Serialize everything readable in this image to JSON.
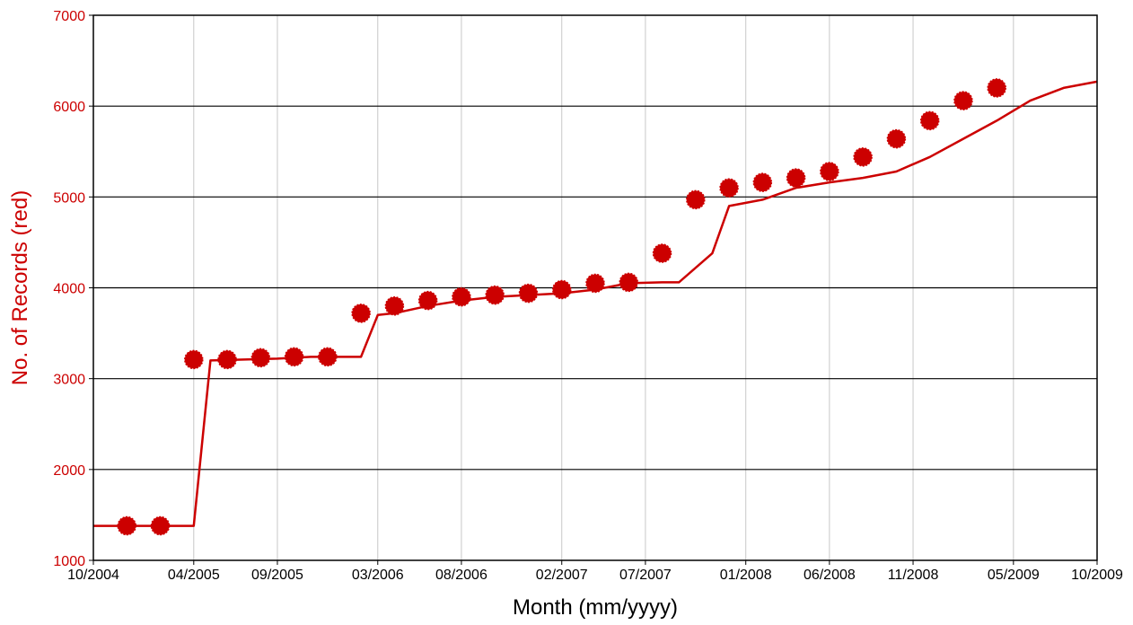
{
  "chart_data": {
    "type": "line",
    "title": "",
    "xlabel": "Month (mm/yyyy)",
    "ylabel": "No. of Records (red)",
    "xlim": [
      "2004-10",
      "2009-10"
    ],
    "ylim": [
      1000,
      7000
    ],
    "x_ticks": [
      "10/2004",
      "04/2005",
      "09/2005",
      "03/2006",
      "08/2006",
      "02/2007",
      "07/2007",
      "01/2008",
      "06/2008",
      "11/2008",
      "05/2009",
      "10/2009"
    ],
    "y_ticks": [
      1000,
      2000,
      3000,
      4000,
      5000,
      6000,
      7000
    ],
    "grid": {
      "vertical": true,
      "horizontal": true
    },
    "legend": "none",
    "series": [
      {
        "color": "#cc0000",
        "x": [
          "2004-10",
          "2005-01",
          "2005-03",
          "2005-04",
          "2005-05",
          "2005-07",
          "2005-09",
          "2005-11",
          "2006-02",
          "2006-03",
          "2006-04",
          "2006-06",
          "2006-08",
          "2006-10",
          "2006-12",
          "2007-02",
          "2007-04",
          "2007-06",
          "2007-08",
          "2007-09",
          "2007-11",
          "2007-12",
          "2008-02",
          "2008-04",
          "2008-06",
          "2008-08",
          "2008-10",
          "2008-12",
          "2009-02",
          "2009-04",
          "2009-06",
          "2009-08",
          "2009-10"
        ],
        "y": [
          1380,
          1380,
          1380,
          1380,
          3200,
          3210,
          3220,
          3240,
          3240,
          3700,
          3720,
          3800,
          3860,
          3900,
          3920,
          3940,
          3980,
          4050,
          4060,
          4060,
          4380,
          4900,
          4970,
          5100,
          5160,
          5210,
          5280,
          5440,
          5640,
          5840,
          6060,
          6200,
          6270
        ],
        "markers": [
          [
            "2004-12",
            1380
          ],
          [
            "2005-02",
            1380
          ],
          [
            "2005-04",
            3210
          ],
          [
            "2005-06",
            3210
          ],
          [
            "2005-08",
            3230
          ],
          [
            "2005-10",
            3240
          ],
          [
            "2005-12",
            3240
          ],
          [
            "2006-02",
            3720
          ],
          [
            "2006-04",
            3800
          ],
          [
            "2006-06",
            3860
          ],
          [
            "2006-08",
            3900
          ],
          [
            "2006-10",
            3920
          ],
          [
            "2006-12",
            3940
          ],
          [
            "2007-02",
            3980
          ],
          [
            "2007-04",
            4050
          ],
          [
            "2007-06",
            4060
          ],
          [
            "2007-08",
            4380
          ],
          [
            "2007-10",
            4970
          ],
          [
            "2007-12",
            5100
          ],
          [
            "2008-02",
            5160
          ],
          [
            "2008-04",
            5210
          ],
          [
            "2008-06",
            5280
          ],
          [
            "2008-08",
            5440
          ],
          [
            "2008-10",
            5640
          ],
          [
            "2008-12",
            5840
          ],
          [
            "2009-02",
            6060
          ],
          [
            "2009-04",
            6200
          ]
        ]
      }
    ]
  }
}
